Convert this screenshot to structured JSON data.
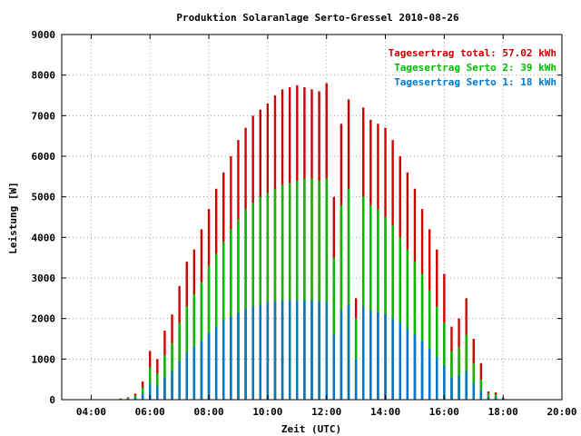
{
  "chart_data": {
    "type": "bar",
    "title": "Produktion Solaranlage Serto-Gressel 2010-08-26",
    "xlabel": "Zeit (UTC)",
    "ylabel": "Leistung [W]",
    "x_unit": "hours UTC",
    "xlim": [
      3.0,
      20.0
    ],
    "ylim": [
      0,
      9000
    ],
    "x_ticks": [
      4,
      6,
      8,
      10,
      12,
      14,
      16,
      18,
      20
    ],
    "x_tick_labels": [
      "04:00",
      "06:00",
      "08:00",
      "10:00",
      "12:00",
      "14:00",
      "16:00",
      "18:00",
      "20:00"
    ],
    "y_ticks": [
      0,
      1000,
      2000,
      3000,
      4000,
      5000,
      6000,
      7000,
      8000,
      9000
    ],
    "y_tick_labels": [
      "0",
      "1000",
      "2000",
      "3000",
      "4000",
      "5000",
      "6000",
      "7000",
      "8000",
      "9000"
    ],
    "grid": true,
    "legend_position": "top-right",
    "legend": [
      {
        "label": "Tagesertrag total: 57.02 kWh",
        "color": "#cc0000"
      },
      {
        "label": "Tagesertrag Serto 2: 39 kWh",
        "color": "#00bb00"
      },
      {
        "label": "Tagesertrag Serto 1: 18 kWh",
        "color": "#0077cc"
      }
    ],
    "x": [
      5.0,
      5.25,
      5.5,
      5.75,
      6.0,
      6.25,
      6.5,
      6.75,
      7.0,
      7.25,
      7.5,
      7.75,
      8.0,
      8.25,
      8.5,
      8.75,
      9.0,
      9.25,
      9.5,
      9.75,
      10.0,
      10.25,
      10.5,
      10.75,
      11.0,
      11.25,
      11.5,
      11.75,
      12.0,
      12.25,
      12.5,
      12.75,
      13.0,
      13.25,
      13.5,
      13.75,
      14.0,
      14.25,
      14.5,
      14.75,
      15.0,
      15.25,
      15.5,
      15.75,
      16.0,
      16.25,
      16.5,
      16.75,
      17.0,
      17.25,
      17.5,
      17.75,
      18.0
    ],
    "series": [
      {
        "name": "Tagesertrag total: 57.02 kWh",
        "color": "#cc0000",
        "values": [
          30,
          60,
          150,
          450,
          1200,
          1000,
          1700,
          2100,
          2800,
          3400,
          3700,
          4200,
          4700,
          5200,
          5600,
          6000,
          6400,
          6700,
          7000,
          7150,
          7300,
          7500,
          7650,
          7700,
          7750,
          7700,
          7650,
          7600,
          7800,
          5000,
          6800,
          7400,
          2500,
          7200,
          6900,
          6800,
          6700,
          6400,
          6000,
          5600,
          5200,
          4700,
          4200,
          3700,
          3100,
          1800,
          2000,
          2500,
          1500,
          900,
          200,
          180,
          50
        ]
      },
      {
        "name": "Tagesertrag Serto 2: 39 kWh",
        "color": "#00bb00",
        "values": [
          20,
          40,
          100,
          300,
          800,
          650,
          1100,
          1400,
          1900,
          2300,
          2600,
          2900,
          3300,
          3600,
          3900,
          4200,
          4450,
          4700,
          4850,
          5000,
          5100,
          5200,
          5300,
          5350,
          5400,
          5450,
          5450,
          5400,
          5450,
          3500,
          4800,
          5200,
          2000,
          5000,
          4800,
          4700,
          4500,
          4300,
          4000,
          3700,
          3400,
          3100,
          2700,
          2300,
          1900,
          1200,
          1300,
          1600,
          900,
          500,
          150,
          130,
          40
        ]
      },
      {
        "name": "Tagesertrag Serto 1: 18 kWh",
        "color": "#0077cc",
        "values": [
          10,
          20,
          50,
          150,
          400,
          330,
          550,
          700,
          950,
          1150,
          1300,
          1450,
          1650,
          1800,
          1950,
          2050,
          2150,
          2250,
          2300,
          2350,
          2400,
          2420,
          2440,
          2450,
          2450,
          2450,
          2440,
          2430,
          2400,
          1600,
          2200,
          2350,
          1000,
          2300,
          2200,
          2150,
          2100,
          2000,
          1900,
          1750,
          1600,
          1450,
          1250,
          1050,
          850,
          550,
          600,
          700,
          400,
          230,
          70,
          60,
          20
        ]
      }
    ]
  }
}
